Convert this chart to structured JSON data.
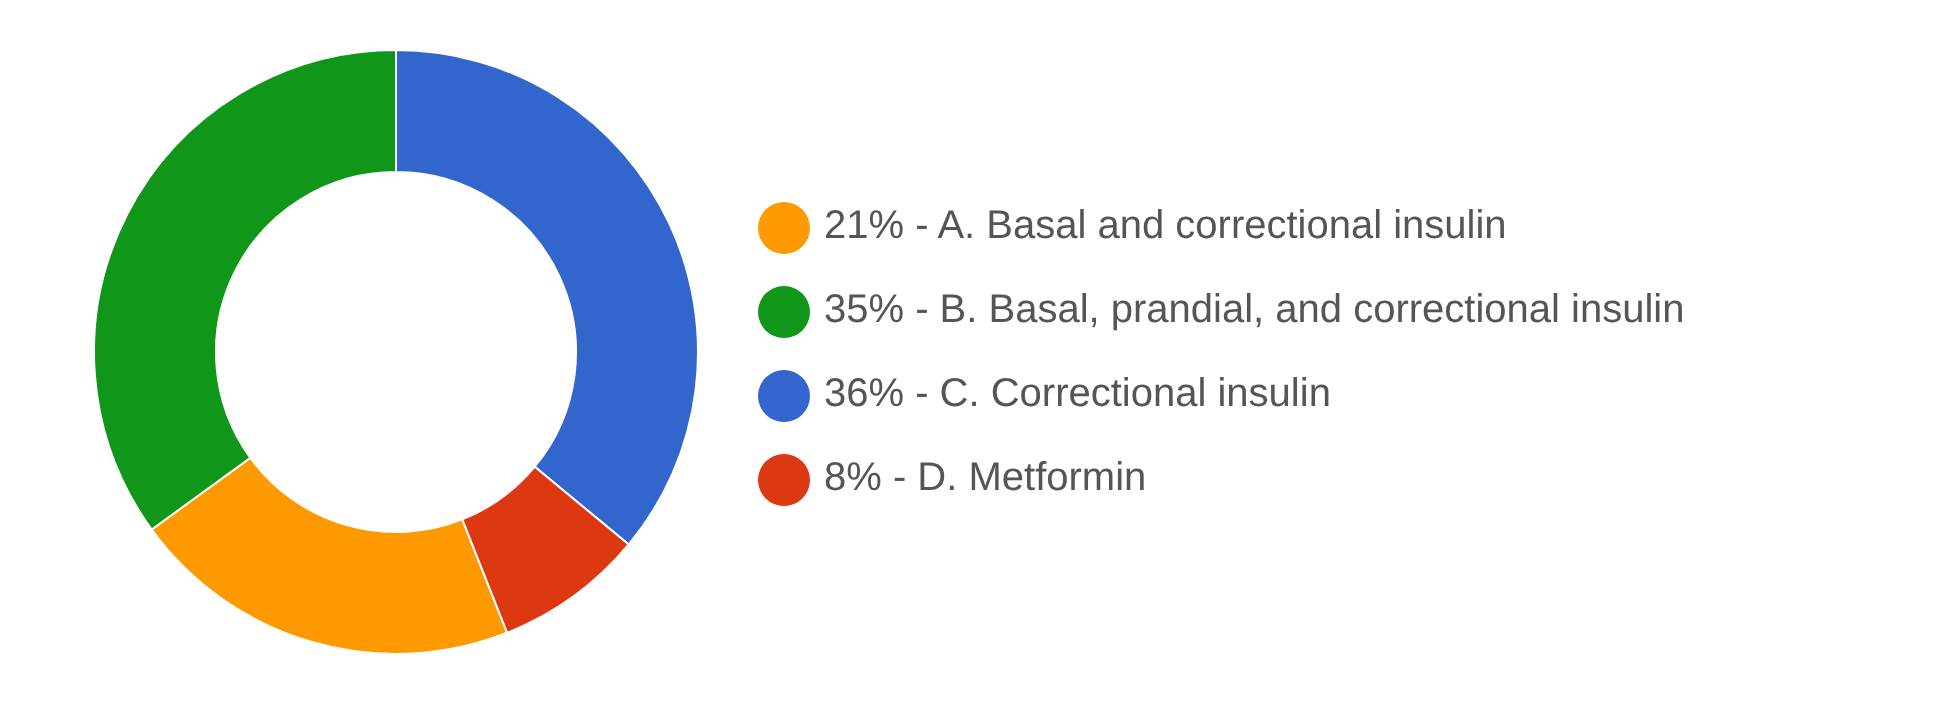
{
  "chart_data": {
    "type": "donut",
    "categories": [
      "A. Basal and correctional insulin",
      "B. Basal, prandial, and correctional insulin",
      "C. Correctional insulin",
      "D. Metformin"
    ],
    "values": [
      21,
      35,
      36,
      8
    ],
    "value_labels": [
      "21%",
      "35%",
      "36%",
      "8%"
    ],
    "colors": [
      "#ff9900",
      "#109618",
      "#3366cc",
      "#dc3912"
    ],
    "legend": "right"
  }
}
